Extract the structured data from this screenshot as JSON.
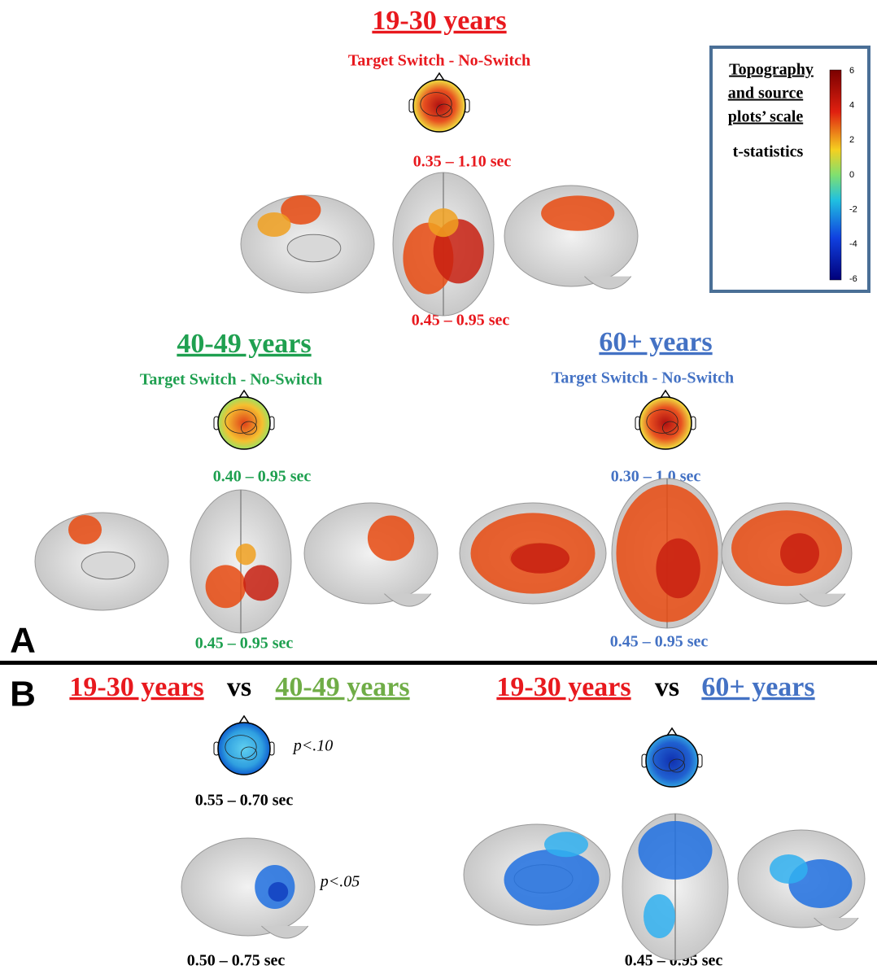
{
  "panel_a": {
    "label": "A",
    "groups": [
      {
        "title": "19-30 years",
        "subtitle": "Target Switch - No-Switch",
        "topo_window": "0.35 – 1.10 sec",
        "source_window": "0.45 – 0.95 sec"
      },
      {
        "title": "40-49 years",
        "subtitle": "Target Switch - No-Switch",
        "topo_window": "0.40 – 0.95 sec",
        "source_window": "0.45 – 0.95 sec"
      },
      {
        "title": "60+ years",
        "subtitle": "Target Switch - No-Switch",
        "topo_window": "0.30 – 1.0 sec",
        "source_window": "0.45 – 0.95 sec"
      }
    ]
  },
  "legend": {
    "title_lines": [
      "Topography",
      "and source",
      "plots’ scale"
    ],
    "stat": "t-statistics",
    "ticks": [
      6,
      4,
      2,
      0,
      -2,
      -4,
      -6
    ]
  },
  "panel_b": {
    "label": "B",
    "comparisons": [
      {
        "group1": "19-30 years",
        "vs": "vs",
        "group2": "40-49 years",
        "topo_window": "0.55 – 0.70 sec",
        "topo_p": "p<.10",
        "source_window": "0.50 – 0.75 sec",
        "source_p": "p<.05"
      },
      {
        "group1": "19-30 years",
        "vs": "vs",
        "group2": "60+ years",
        "source_window": "0.45 – 0.95 sec"
      }
    ]
  }
}
